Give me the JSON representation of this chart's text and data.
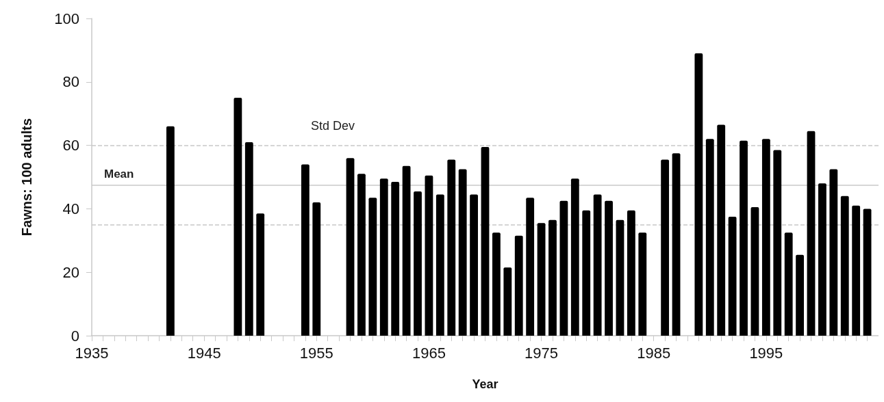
{
  "chart_data": {
    "type": "bar",
    "xlabel": "Year",
    "ylabel": "Fawns: 100 adults",
    "x": [
      1942,
      1948,
      1949,
      1950,
      1954,
      1955,
      1958,
      1959,
      1960,
      1961,
      1962,
      1963,
      1964,
      1965,
      1966,
      1967,
      1968,
      1969,
      1970,
      1971,
      1972,
      1973,
      1974,
      1975,
      1976,
      1977,
      1978,
      1979,
      1980,
      1981,
      1982,
      1983,
      1984,
      1986,
      1987,
      1989,
      1990,
      1991,
      1992,
      1993,
      1994,
      1995,
      1996,
      1997,
      1998,
      1999,
      2000,
      2001,
      2002,
      2003,
      2004
    ],
    "values": [
      66,
      75,
      61,
      38.5,
      54,
      42,
      56,
      51,
      43.5,
      49.5,
      48.5,
      53.5,
      45.5,
      50.5,
      44.5,
      55.5,
      52.5,
      44.5,
      59.5,
      32.5,
      21.5,
      31.5,
      43.5,
      35.5,
      36.5,
      42.5,
      49.5,
      39.5,
      44.5,
      42.5,
      36.5,
      39.5,
      32.5,
      55.5,
      57.5,
      89,
      62,
      66.5,
      37.5,
      61.5,
      40.5,
      62,
      58.5,
      32.5,
      25.5,
      64.5,
      48,
      52.5,
      44,
      41,
      40
    ],
    "color": "#000000",
    "xlim": [
      1935,
      2005
    ],
    "xticks": [
      1935,
      {
        "value": 1936,
        "label": null
      },
      {
        "value": 1937,
        "label": null
      },
      {
        "value": 1938,
        "label": null
      },
      {
        "value": 1939,
        "label": null
      },
      {
        "value": 1940,
        "label": null
      },
      {
        "value": 1941,
        "label": null
      },
      {
        "value": 1942,
        "label": null
      },
      {
        "value": 1943,
        "label": null
      },
      {
        "value": 1944,
        "label": null
      },
      1945,
      {
        "value": 1946,
        "label": null
      },
      {
        "value": 1947,
        "label": null
      },
      {
        "value": 1948,
        "label": null
      },
      {
        "value": 1949,
        "label": null
      },
      {
        "value": 1950,
        "label": null
      },
      {
        "value": 1951,
        "label": null
      },
      {
        "value": 1952,
        "label": null
      },
      {
        "value": 1953,
        "label": null
      },
      {
        "value": 1954,
        "label": null
      },
      1955,
      {
        "value": 1956,
        "label": null
      },
      {
        "value": 1957,
        "label": null
      },
      {
        "value": 1958,
        "label": null
      },
      {
        "value": 1959,
        "label": null
      },
      {
        "value": 1960,
        "label": null
      },
      {
        "value": 1961,
        "label": null
      },
      {
        "value": 1962,
        "label": null
      },
      {
        "value": 1963,
        "label": null
      },
      {
        "value": 1964,
        "label": null
      },
      1965,
      {
        "value": 1966,
        "label": null
      },
      {
        "value": 1967,
        "label": null
      },
      {
        "value": 1968,
        "label": null
      },
      {
        "value": 1969,
        "label": null
      },
      {
        "value": 1970,
        "label": null
      },
      {
        "value": 1971,
        "label": null
      },
      {
        "value": 1972,
        "label": null
      },
      {
        "value": 1973,
        "label": null
      },
      {
        "value": 1974,
        "label": null
      },
      1975,
      {
        "value": 1976,
        "label": null
      },
      {
        "value": 1977,
        "label": null
      },
      {
        "value": 1978,
        "label": null
      },
      {
        "value": 1979,
        "label": null
      },
      {
        "value": 1980,
        "label": null
      },
      {
        "value": 1981,
        "label": null
      },
      {
        "value": 1982,
        "label": null
      },
      {
        "value": 1983,
        "label": null
      },
      {
        "value": 1984,
        "label": null
      },
      1985,
      {
        "value": 1986,
        "label": null
      },
      {
        "value": 1987,
        "label": null
      },
      {
        "value": 1988,
        "label": null
      },
      {
        "value": 1989,
        "label": null
      },
      {
        "value": 1990,
        "label": null
      },
      {
        "value": 1991,
        "label": null
      },
      {
        "value": 1992,
        "label": null
      },
      {
        "value": 1993,
        "label": null
      },
      {
        "value": 1994,
        "label": null
      },
      1995,
      {
        "value": 1996,
        "label": null
      },
      {
        "value": 1997,
        "label": null
      },
      {
        "value": 1998,
        "label": null
      },
      {
        "value": 1999,
        "label": null
      },
      {
        "value": 2000,
        "label": null
      },
      {
        "value": 2001,
        "label": null
      },
      {
        "value": 2002,
        "label": null
      },
      {
        "value": 2003,
        "label": null
      },
      {
        "value": 2004,
        "label": null
      }
    ],
    "ylim": [
      0,
      100
    ],
    "yticks": [
      0,
      20,
      40,
      60,
      80,
      100
    ],
    "grid": false,
    "ref_lines": [
      {
        "axis": "y",
        "value": 47.5,
        "label": "Mean",
        "color": "#c8c8c8",
        "line_style": "solid"
      },
      {
        "axis": "y",
        "value": 60,
        "label": "Std Dev",
        "color": "#c8c8c8",
        "line_style": "dashed"
      },
      {
        "axis": "y",
        "value": 35,
        "label": null,
        "color": "#c8c8c8",
        "line_style": "dashed"
      }
    ]
  }
}
